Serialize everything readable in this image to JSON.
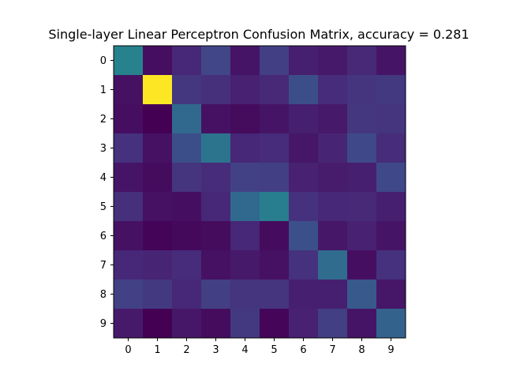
{
  "chart_data": {
    "type": "heatmap",
    "title": "Single-layer Linear Perceptron Confusion Matrix, accuracy = 0.281",
    "xlabel": "",
    "ylabel": "",
    "x_ticks": [
      "0",
      "1",
      "2",
      "3",
      "4",
      "5",
      "6",
      "7",
      "8",
      "9"
    ],
    "y_ticks": [
      "0",
      "1",
      "2",
      "3",
      "4",
      "5",
      "6",
      "7",
      "8",
      "9"
    ],
    "colormap": "viridis",
    "value_range": [
      0,
      1
    ],
    "grid": false,
    "values": [
      [
        0.55,
        0.05,
        0.14,
        0.26,
        0.07,
        0.23,
        0.11,
        0.09,
        0.15,
        0.07
      ],
      [
        0.06,
        1.0,
        0.2,
        0.17,
        0.12,
        0.15,
        0.3,
        0.16,
        0.19,
        0.21
      ],
      [
        0.05,
        0.0,
        0.43,
        0.06,
        0.04,
        0.07,
        0.11,
        0.09,
        0.2,
        0.19
      ],
      [
        0.18,
        0.06,
        0.3,
        0.48,
        0.14,
        0.16,
        0.08,
        0.13,
        0.27,
        0.16
      ],
      [
        0.07,
        0.04,
        0.19,
        0.16,
        0.24,
        0.23,
        0.12,
        0.1,
        0.11,
        0.27
      ],
      [
        0.17,
        0.06,
        0.05,
        0.14,
        0.43,
        0.53,
        0.18,
        0.14,
        0.15,
        0.11
      ],
      [
        0.06,
        0.01,
        0.03,
        0.04,
        0.14,
        0.04,
        0.31,
        0.08,
        0.12,
        0.07
      ],
      [
        0.14,
        0.13,
        0.16,
        0.06,
        0.09,
        0.06,
        0.18,
        0.44,
        0.05,
        0.18
      ],
      [
        0.24,
        0.21,
        0.14,
        0.23,
        0.19,
        0.19,
        0.11,
        0.11,
        0.35,
        0.08
      ],
      [
        0.09,
        0.0,
        0.08,
        0.04,
        0.21,
        0.02,
        0.12,
        0.23,
        0.07,
        0.4
      ]
    ]
  }
}
